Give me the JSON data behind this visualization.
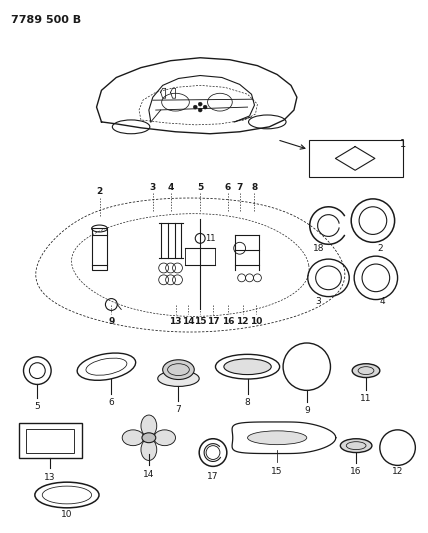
{
  "title": "7789 500 B",
  "title_fontsize": 8,
  "bg_color": "#ffffff",
  "line_color": "#1a1a1a",
  "figsize": [
    4.28,
    5.33
  ],
  "dpi": 100
}
